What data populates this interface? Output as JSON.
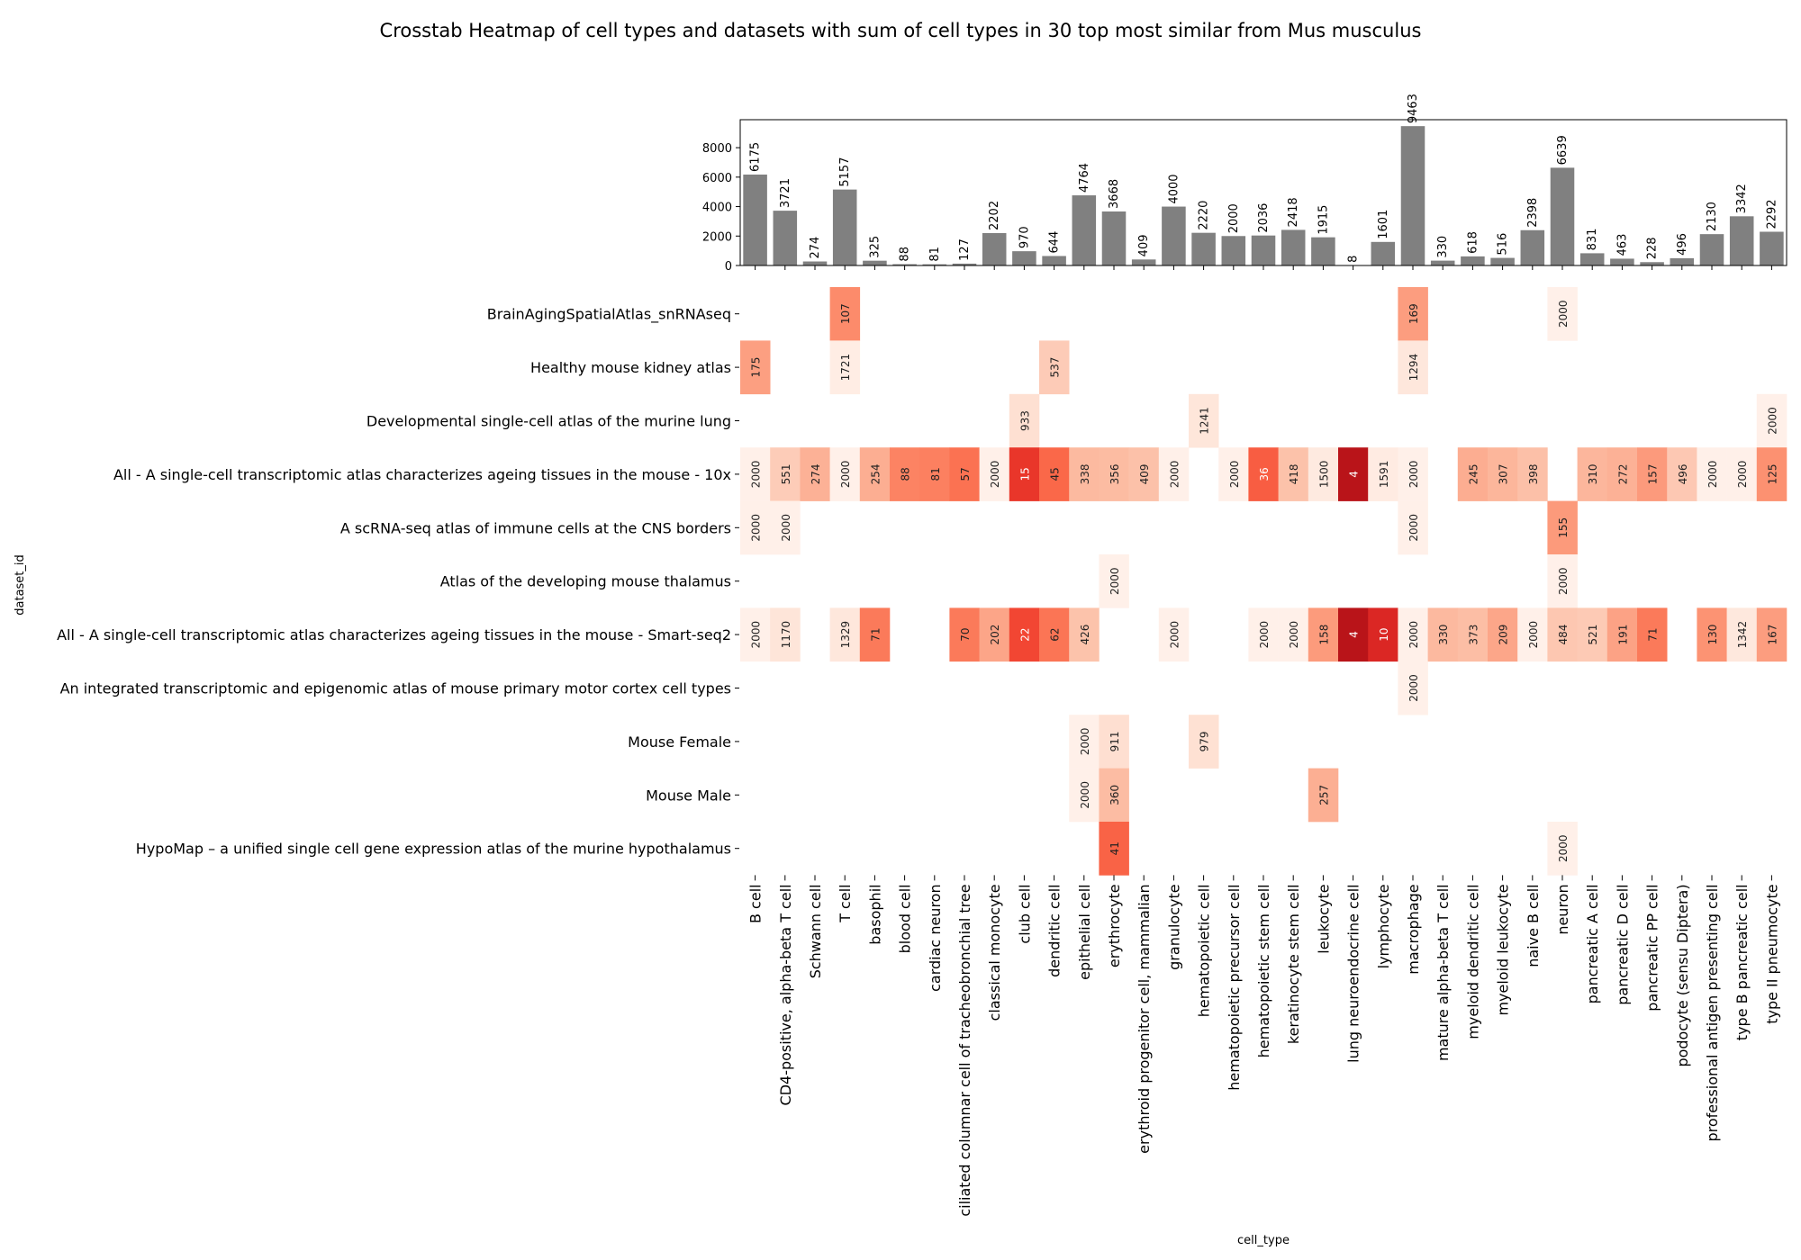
{
  "chart_data": {
    "type": "heatmap",
    "title": "Crosstab Heatmap of cell types and datasets with sum of cell types in 30 top most similar from Mus musculus",
    "xlabel": "cell_type",
    "ylabel": "dataset_id",
    "colormap": "Reds (reversed: lower values darker)",
    "bar_color": "#808080",
    "categories": [
      "B cell",
      "CD4-positive, alpha-beta T cell",
      "Schwann cell",
      "T cell",
      "basophil",
      "blood cell",
      "cardiac neuron",
      "ciliated columnar cell of tracheobronchial tree",
      "classical monocyte",
      "club cell",
      "dendritic cell",
      "epithelial cell",
      "erythrocyte",
      "erythroid progenitor cell, mammalian",
      "granulocyte",
      "hematopoietic cell",
      "hematopoietic precursor cell",
      "hematopoietic stem cell",
      "keratinocyte stem cell",
      "leukocyte",
      "lung neuroendocrine cell",
      "lymphocyte",
      "macrophage",
      "mature alpha-beta T cell",
      "myeloid dendritic cell",
      "myeloid leukocyte",
      "naive B cell",
      "neuron",
      "pancreatic A cell",
      "pancreatic D cell",
      "pancreatic PP cell",
      "podocyte (sensu Diptera)",
      "professional antigen presenting cell",
      "type B pancreatic cell",
      "type II pneumocyte"
    ],
    "bar": {
      "values": [
        6175,
        3721,
        274,
        5157,
        325,
        88,
        81,
        127,
        2202,
        970,
        644,
        4764,
        3668,
        409,
        4000,
        2220,
        2000,
        2036,
        2418,
        1915,
        8,
        1601,
        9463,
        330,
        618,
        516,
        2398,
        6639,
        831,
        463,
        228,
        496,
        2130,
        3342,
        2292
      ],
      "yticks": [
        "0",
        "2000",
        "4000",
        "6000",
        "8000"
      ],
      "ylim": [
        0,
        9900
      ]
    },
    "datasets": [
      "BrainAgingSpatialAtlas_snRNAseq",
      "Healthy mouse kidney atlas",
      "Developmental single-cell atlas of the murine lung",
      "All - A single-cell transcriptomic atlas characterizes ageing tissues in the mouse - 10x",
      "A scRNA-seq atlas of immune cells at the CNS borders",
      "Atlas of the developing mouse thalamus",
      "All - A single-cell transcriptomic atlas characterizes ageing tissues in the mouse - Smart-seq2",
      "An integrated transcriptomic and epigenomic atlas of mouse primary motor cortex cell types",
      "Mouse Female",
      "Mouse Male",
      "HypoMap – a unified single cell gene expression atlas of the murine hypothalamus"
    ],
    "matrix": [
      [
        null,
        null,
        null,
        107,
        null,
        null,
        null,
        null,
        null,
        null,
        null,
        null,
        null,
        null,
        null,
        null,
        null,
        null,
        null,
        null,
        null,
        null,
        169,
        null,
        null,
        null,
        null,
        2000,
        null,
        null,
        null,
        null,
        null,
        null,
        null
      ],
      [
        175,
        null,
        null,
        1721,
        null,
        null,
        null,
        null,
        null,
        null,
        537,
        null,
        null,
        null,
        null,
        null,
        null,
        null,
        null,
        null,
        null,
        null,
        1294,
        null,
        null,
        null,
        null,
        null,
        null,
        null,
        null,
        null,
        null,
        null,
        null
      ],
      [
        null,
        null,
        null,
        null,
        null,
        null,
        null,
        null,
        null,
        933,
        null,
        null,
        null,
        null,
        null,
        1241,
        null,
        null,
        null,
        null,
        null,
        null,
        null,
        null,
        null,
        null,
        null,
        null,
        null,
        null,
        null,
        null,
        null,
        null,
        2000
      ],
      [
        2000,
        551,
        274,
        2000,
        254,
        88,
        81,
        57,
        2000,
        15,
        45,
        338,
        356,
        409,
        2000,
        null,
        2000,
        36,
        418,
        1500,
        4,
        1591,
        2000,
        null,
        245,
        307,
        398,
        null,
        310,
        272,
        157,
        496,
        2000,
        2000,
        125
      ],
      [
        2000,
        2000,
        null,
        null,
        null,
        null,
        null,
        null,
        null,
        null,
        null,
        null,
        null,
        null,
        null,
        null,
        null,
        null,
        null,
        null,
        null,
        null,
        2000,
        null,
        null,
        null,
        null,
        155,
        null,
        null,
        null,
        null,
        null,
        null,
        null
      ],
      [
        null,
        null,
        null,
        null,
        null,
        null,
        null,
        null,
        null,
        null,
        null,
        null,
        2000,
        null,
        null,
        null,
        null,
        null,
        null,
        null,
        null,
        null,
        null,
        null,
        null,
        null,
        null,
        2000,
        null,
        null,
        null,
        null,
        null,
        null,
        null
      ],
      [
        2000,
        1170,
        null,
        1329,
        71,
        null,
        null,
        70,
        202,
        22,
        62,
        426,
        null,
        null,
        2000,
        null,
        null,
        2000,
        2000,
        158,
        4,
        10,
        2000,
        330,
        373,
        209,
        2000,
        484,
        521,
        191,
        71,
        null,
        130,
        1342,
        167
      ],
      [
        null,
        null,
        null,
        null,
        null,
        null,
        null,
        null,
        null,
        null,
        null,
        null,
        null,
        null,
        null,
        null,
        null,
        null,
        null,
        null,
        null,
        null,
        2000,
        null,
        null,
        null,
        null,
        null,
        null,
        null,
        null,
        null,
        null,
        null,
        null
      ],
      [
        null,
        null,
        null,
        null,
        null,
        null,
        null,
        null,
        null,
        null,
        null,
        2000,
        911,
        null,
        null,
        979,
        null,
        null,
        null,
        null,
        null,
        null,
        null,
        null,
        null,
        null,
        null,
        null,
        null,
        null,
        null,
        null,
        null,
        null,
        null
      ],
      [
        null,
        null,
        null,
        null,
        null,
        null,
        null,
        null,
        null,
        null,
        null,
        2000,
        360,
        null,
        null,
        null,
        null,
        null,
        null,
        257,
        null,
        null,
        null,
        null,
        null,
        null,
        null,
        null,
        null,
        null,
        null,
        null,
        null,
        null,
        null
      ],
      [
        null,
        null,
        null,
        null,
        null,
        null,
        null,
        null,
        null,
        null,
        null,
        null,
        41,
        null,
        null,
        null,
        null,
        null,
        null,
        null,
        null,
        null,
        null,
        null,
        null,
        null,
        null,
        2000,
        null,
        null,
        null,
        null,
        null,
        null,
        null
      ]
    ]
  }
}
